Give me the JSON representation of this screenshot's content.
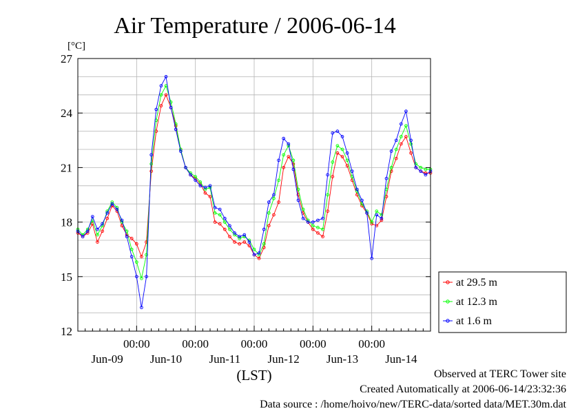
{
  "chart_data": {
    "type": "line",
    "title": "Air Temperature / 2006-06-14",
    "ylabel": "[°C]",
    "xlabel": "(LST)",
    "ylim": [
      12,
      27
    ],
    "yticks": [
      12,
      15,
      18,
      21,
      24,
      27
    ],
    "xlim_hours": [
      0,
      144
    ],
    "time_tick_label": "00:00",
    "time_ticks_hours": [
      24,
      48,
      72,
      96,
      120
    ],
    "day_labels": [
      {
        "label": "Jun-09",
        "hour": 12
      },
      {
        "label": "Jun-10",
        "hour": 36
      },
      {
        "label": "Jun-11",
        "hour": 60
      },
      {
        "label": "Jun-12",
        "hour": 84
      },
      {
        "label": "Jun-13",
        "hour": 108
      },
      {
        "label": "Jun-14",
        "hour": 132
      }
    ],
    "grid": true,
    "legend_position": "right",
    "series": [
      {
        "name": "at 29.5 m",
        "color": "#ff0000",
        "x": [
          0,
          2,
          4,
          6,
          8,
          10,
          12,
          14,
          16,
          18,
          20,
          22,
          24,
          26,
          28,
          30,
          32,
          34,
          36,
          38,
          40,
          42,
          44,
          46,
          48,
          50,
          52,
          54,
          56,
          58,
          60,
          62,
          64,
          66,
          68,
          70,
          72,
          74,
          76,
          78,
          80,
          82,
          84,
          86,
          88,
          90,
          92,
          94,
          96,
          98,
          100,
          102,
          104,
          106,
          108,
          110,
          112,
          114,
          116,
          118,
          120,
          122,
          124,
          126,
          128,
          130,
          132,
          134,
          136,
          138,
          140,
          142,
          144
        ],
        "y": [
          17.4,
          17.2,
          17.4,
          17.9,
          16.9,
          17.5,
          18.2,
          18.9,
          18.6,
          17.8,
          17.3,
          17.1,
          16.8,
          16.1,
          16.9,
          20.8,
          23.0,
          24.4,
          25.0,
          24.3,
          23.3,
          22.0,
          21.0,
          20.6,
          20.4,
          20.1,
          19.6,
          19.4,
          18.0,
          17.9,
          17.6,
          17.2,
          16.9,
          16.8,
          16.9,
          16.7,
          16.2,
          16.0,
          16.6,
          17.8,
          18.4,
          19.1,
          21.0,
          21.6,
          21.2,
          19.5,
          18.5,
          18.0,
          17.6,
          17.4,
          17.2,
          18.6,
          20.5,
          21.8,
          21.6,
          21.1,
          20.3,
          19.5,
          18.9,
          18.5,
          17.9,
          17.8,
          18.1,
          19.4,
          20.8,
          21.5,
          22.3,
          22.7,
          21.8,
          21.0,
          20.8,
          20.7,
          20.7
        ]
      },
      {
        "name": "at 12.3 m",
        "color": "#00ff00",
        "x": [
          0,
          2,
          4,
          6,
          8,
          10,
          12,
          14,
          16,
          18,
          20,
          22,
          24,
          26,
          28,
          30,
          32,
          34,
          36,
          38,
          40,
          42,
          44,
          46,
          48,
          50,
          52,
          54,
          56,
          58,
          60,
          62,
          64,
          66,
          68,
          70,
          72,
          74,
          76,
          78,
          80,
          82,
          84,
          86,
          88,
          90,
          92,
          94,
          96,
          98,
          100,
          102,
          104,
          106,
          108,
          110,
          112,
          114,
          116,
          118,
          120,
          122,
          124,
          126,
          128,
          130,
          132,
          134,
          136,
          138,
          140,
          142,
          144
        ],
        "y": [
          17.6,
          17.3,
          17.6,
          18.1,
          17.3,
          17.8,
          18.6,
          19.1,
          18.8,
          18.0,
          17.5,
          16.5,
          15.8,
          14.9,
          16.2,
          21.2,
          23.6,
          25.0,
          25.5,
          24.6,
          23.4,
          22.0,
          21.0,
          20.7,
          20.5,
          20.2,
          19.8,
          19.9,
          18.5,
          18.4,
          18.0,
          17.6,
          17.3,
          17.1,
          17.2,
          17.0,
          16.5,
          16.2,
          16.8,
          18.5,
          19.3,
          20.3,
          21.7,
          22.2,
          21.4,
          19.8,
          18.7,
          18.1,
          17.8,
          17.7,
          17.6,
          19.5,
          21.3,
          22.2,
          22.0,
          21.4,
          20.5,
          19.7,
          19.0,
          18.6,
          18.0,
          18.6,
          18.4,
          19.8,
          21.0,
          22.0,
          22.7,
          23.3,
          22.3,
          21.2,
          21.0,
          20.9,
          20.9
        ]
      },
      {
        "name": "at 1.6 m",
        "color": "#0000ff",
        "x": [
          0,
          2,
          4,
          6,
          8,
          10,
          12,
          14,
          16,
          18,
          20,
          22,
          24,
          26,
          28,
          30,
          32,
          34,
          36,
          38,
          40,
          42,
          44,
          46,
          48,
          50,
          52,
          54,
          56,
          58,
          60,
          62,
          64,
          66,
          68,
          70,
          72,
          74,
          76,
          78,
          80,
          82,
          84,
          86,
          88,
          90,
          92,
          94,
          96,
          98,
          100,
          102,
          104,
          106,
          108,
          110,
          112,
          114,
          116,
          118,
          120,
          122,
          124,
          126,
          128,
          130,
          132,
          134,
          136,
          138,
          140,
          142,
          144
        ],
        "y": [
          17.5,
          17.2,
          17.5,
          18.3,
          17.6,
          17.9,
          18.5,
          19.0,
          18.7,
          18.1,
          17.2,
          16.1,
          15.0,
          13.3,
          15.0,
          21.7,
          24.2,
          25.5,
          26.0,
          24.3,
          23.1,
          21.9,
          21.0,
          20.6,
          20.3,
          20.0,
          19.9,
          20.0,
          18.8,
          18.7,
          18.2,
          17.8,
          17.4,
          17.2,
          17.3,
          16.9,
          16.2,
          16.3,
          17.6,
          19.1,
          19.5,
          21.4,
          22.6,
          22.3,
          20.9,
          19.2,
          18.2,
          18.0,
          18.0,
          18.1,
          18.2,
          20.6,
          22.9,
          23.0,
          22.7,
          21.8,
          20.8,
          19.8,
          19.2,
          18.5,
          16.0,
          18.4,
          18.2,
          20.4,
          21.9,
          22.5,
          23.4,
          24.1,
          22.5,
          21.0,
          20.8,
          20.6,
          20.8
        ]
      }
    ]
  },
  "footer": {
    "lines": [
      "Observed at TERC Tower site",
      "Created Automatically at 2006-06-14/23:32:36",
      "Data source : /home/hoivo/new/TERC-data/sorted  data/MET.30m.dat"
    ]
  }
}
